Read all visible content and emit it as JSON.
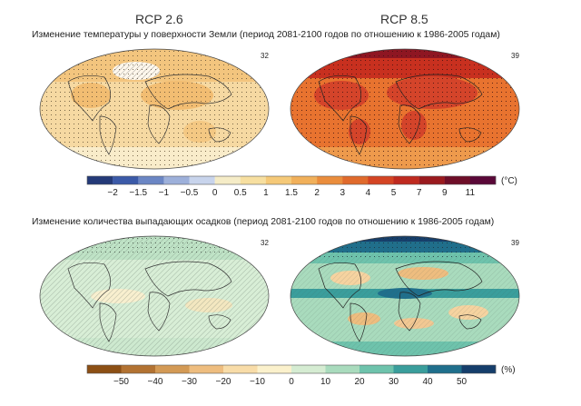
{
  "scenarios": [
    "RCP 2.6",
    "RCP 8.5"
  ],
  "temperature": {
    "title": "Изменение температуры у поверхности Земли (период 2081-2100 годов по отношению к 1986-2005 годам)",
    "model_counts": [
      "32",
      "39"
    ],
    "colorbar": {
      "unit": "(°C)",
      "tick_labels": [
        "−2",
        "−1.5",
        "−1",
        "−0.5",
        "0",
        "0.5",
        "1",
        "1.5",
        "2",
        "3",
        "4",
        "5",
        "7",
        "9",
        "11"
      ],
      "colors": [
        "#243a78",
        "#3b5aa8",
        "#6b86c4",
        "#9db0da",
        "#c8d4ec",
        "#f5ecc7",
        "#f7dfa0",
        "#f5c978",
        "#f1b05a",
        "#ea8d3c",
        "#e06a2c",
        "#d44423",
        "#bf2a1f",
        "#9a1a1e",
        "#6e0e28",
        "#5a0838"
      ]
    }
  },
  "precipitation": {
    "title": "Изменение количества выпадающих осадков (период 2081-2100 годов по отношению к 1986-2005 годам)",
    "model_counts": [
      "32",
      "39"
    ],
    "colorbar": {
      "unit": "(%)",
      "tick_labels": [
        "−50",
        "−40",
        "−30",
        "−20",
        "−10",
        "0",
        "10",
        "20",
        "30",
        "40",
        "50"
      ],
      "colors": [
        "#8c4f14",
        "#b27232",
        "#d39a55",
        "#eebd7f",
        "#f8dca8",
        "#fbf1cc",
        "#d5ecd2",
        "#a9dbbd",
        "#6ec3ac",
        "#3a9e9c",
        "#1f6f8c",
        "#153e6b"
      ]
    }
  }
}
